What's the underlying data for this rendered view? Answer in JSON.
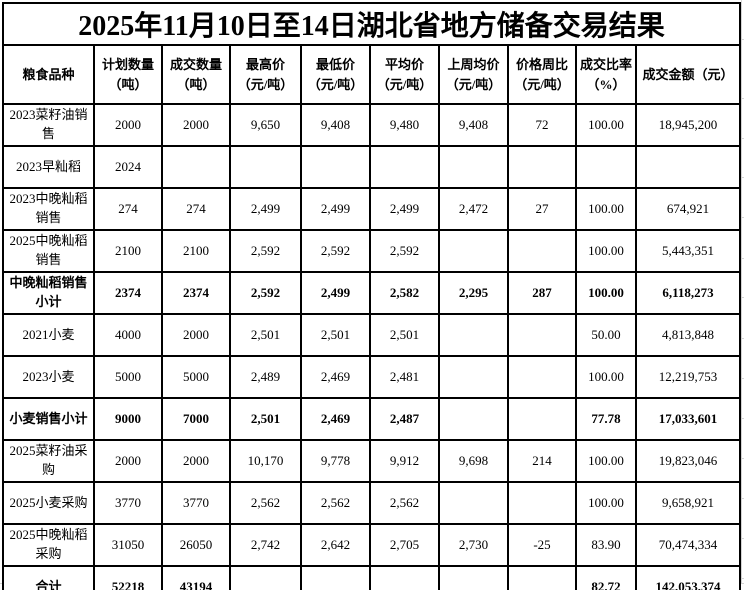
{
  "title": "2025年11月10日至14日湖北省地方储备交易结果",
  "table": {
    "headers": [
      "粮食品种",
      "计划数量\n（吨）",
      "成交数量\n（吨）",
      "最高价\n（元/吨）",
      "最低价\n（元/吨）",
      "平均价\n（元/吨）",
      "上周均价\n（元/吨）",
      "价格周比\n（元/吨）",
      "成交比率\n（%）",
      "成交金额（元）"
    ],
    "rows": [
      {
        "name": "2023菜籽油销\n售",
        "bold": false,
        "values": [
          "2000",
          "2000",
          "9,650",
          "9,408",
          "9,480",
          "9,408",
          "72",
          "100.00",
          "18,945,200"
        ]
      },
      {
        "name": "2023早籼稻",
        "bold": false,
        "values": [
          "2024",
          "",
          "",
          "",
          "",
          "",
          "",
          "",
          ""
        ]
      },
      {
        "name": "2023中晚籼稻\n销售",
        "bold": false,
        "values": [
          "274",
          "274",
          "2,499",
          "2,499",
          "2,499",
          "2,472",
          "27",
          "100.00",
          "674,921"
        ]
      },
      {
        "name": "2025中晚籼稻\n销售",
        "bold": false,
        "values": [
          "2100",
          "2100",
          "2,592",
          "2,592",
          "2,592",
          "",
          "",
          "100.00",
          "5,443,351"
        ]
      },
      {
        "name": "中晚籼稻销售\n小计",
        "bold": true,
        "values": [
          "2374",
          "2374",
          "2,592",
          "2,499",
          "2,582",
          "2,295",
          "287",
          "100.00",
          "6,118,273"
        ]
      },
      {
        "name": "2021小麦",
        "bold": false,
        "values": [
          "4000",
          "2000",
          "2,501",
          "2,501",
          "2,501",
          "",
          "",
          "50.00",
          "4,813,848"
        ]
      },
      {
        "name": "2023小麦",
        "bold": false,
        "values": [
          "5000",
          "5000",
          "2,489",
          "2,469",
          "2,481",
          "",
          "",
          "100.00",
          "12,219,753"
        ]
      },
      {
        "name": "小麦销售小计",
        "bold": true,
        "values": [
          "9000",
          "7000",
          "2,501",
          "2,469",
          "2,487",
          "",
          "",
          "77.78",
          "17,033,601"
        ]
      },
      {
        "name": "2025菜籽油采\n购",
        "bold": false,
        "values": [
          "2000",
          "2000",
          "10,170",
          "9,778",
          "9,912",
          "9,698",
          "214",
          "100.00",
          "19,823,046"
        ]
      },
      {
        "name": "2025小麦采购",
        "bold": false,
        "values": [
          "3770",
          "3770",
          "2,562",
          "2,562",
          "2,562",
          "",
          "",
          "100.00",
          "9,658,921"
        ]
      },
      {
        "name": "2025中晚籼稻\n采购",
        "bold": false,
        "values": [
          "31050",
          "26050",
          "2,742",
          "2,642",
          "2,705",
          "2,730",
          "-25",
          "83.90",
          "70,474,334"
        ]
      },
      {
        "name": "合计",
        "bold": true,
        "values": [
          "52218",
          "43194",
          "",
          "",
          "",
          "",
          "",
          "82.72",
          "142,053,374"
        ]
      }
    ]
  },
  "colors": {
    "table_border": "#000000",
    "faint_gridline": "#d4d4d4",
    "background": "#ffffff",
    "text": "#000000"
  }
}
